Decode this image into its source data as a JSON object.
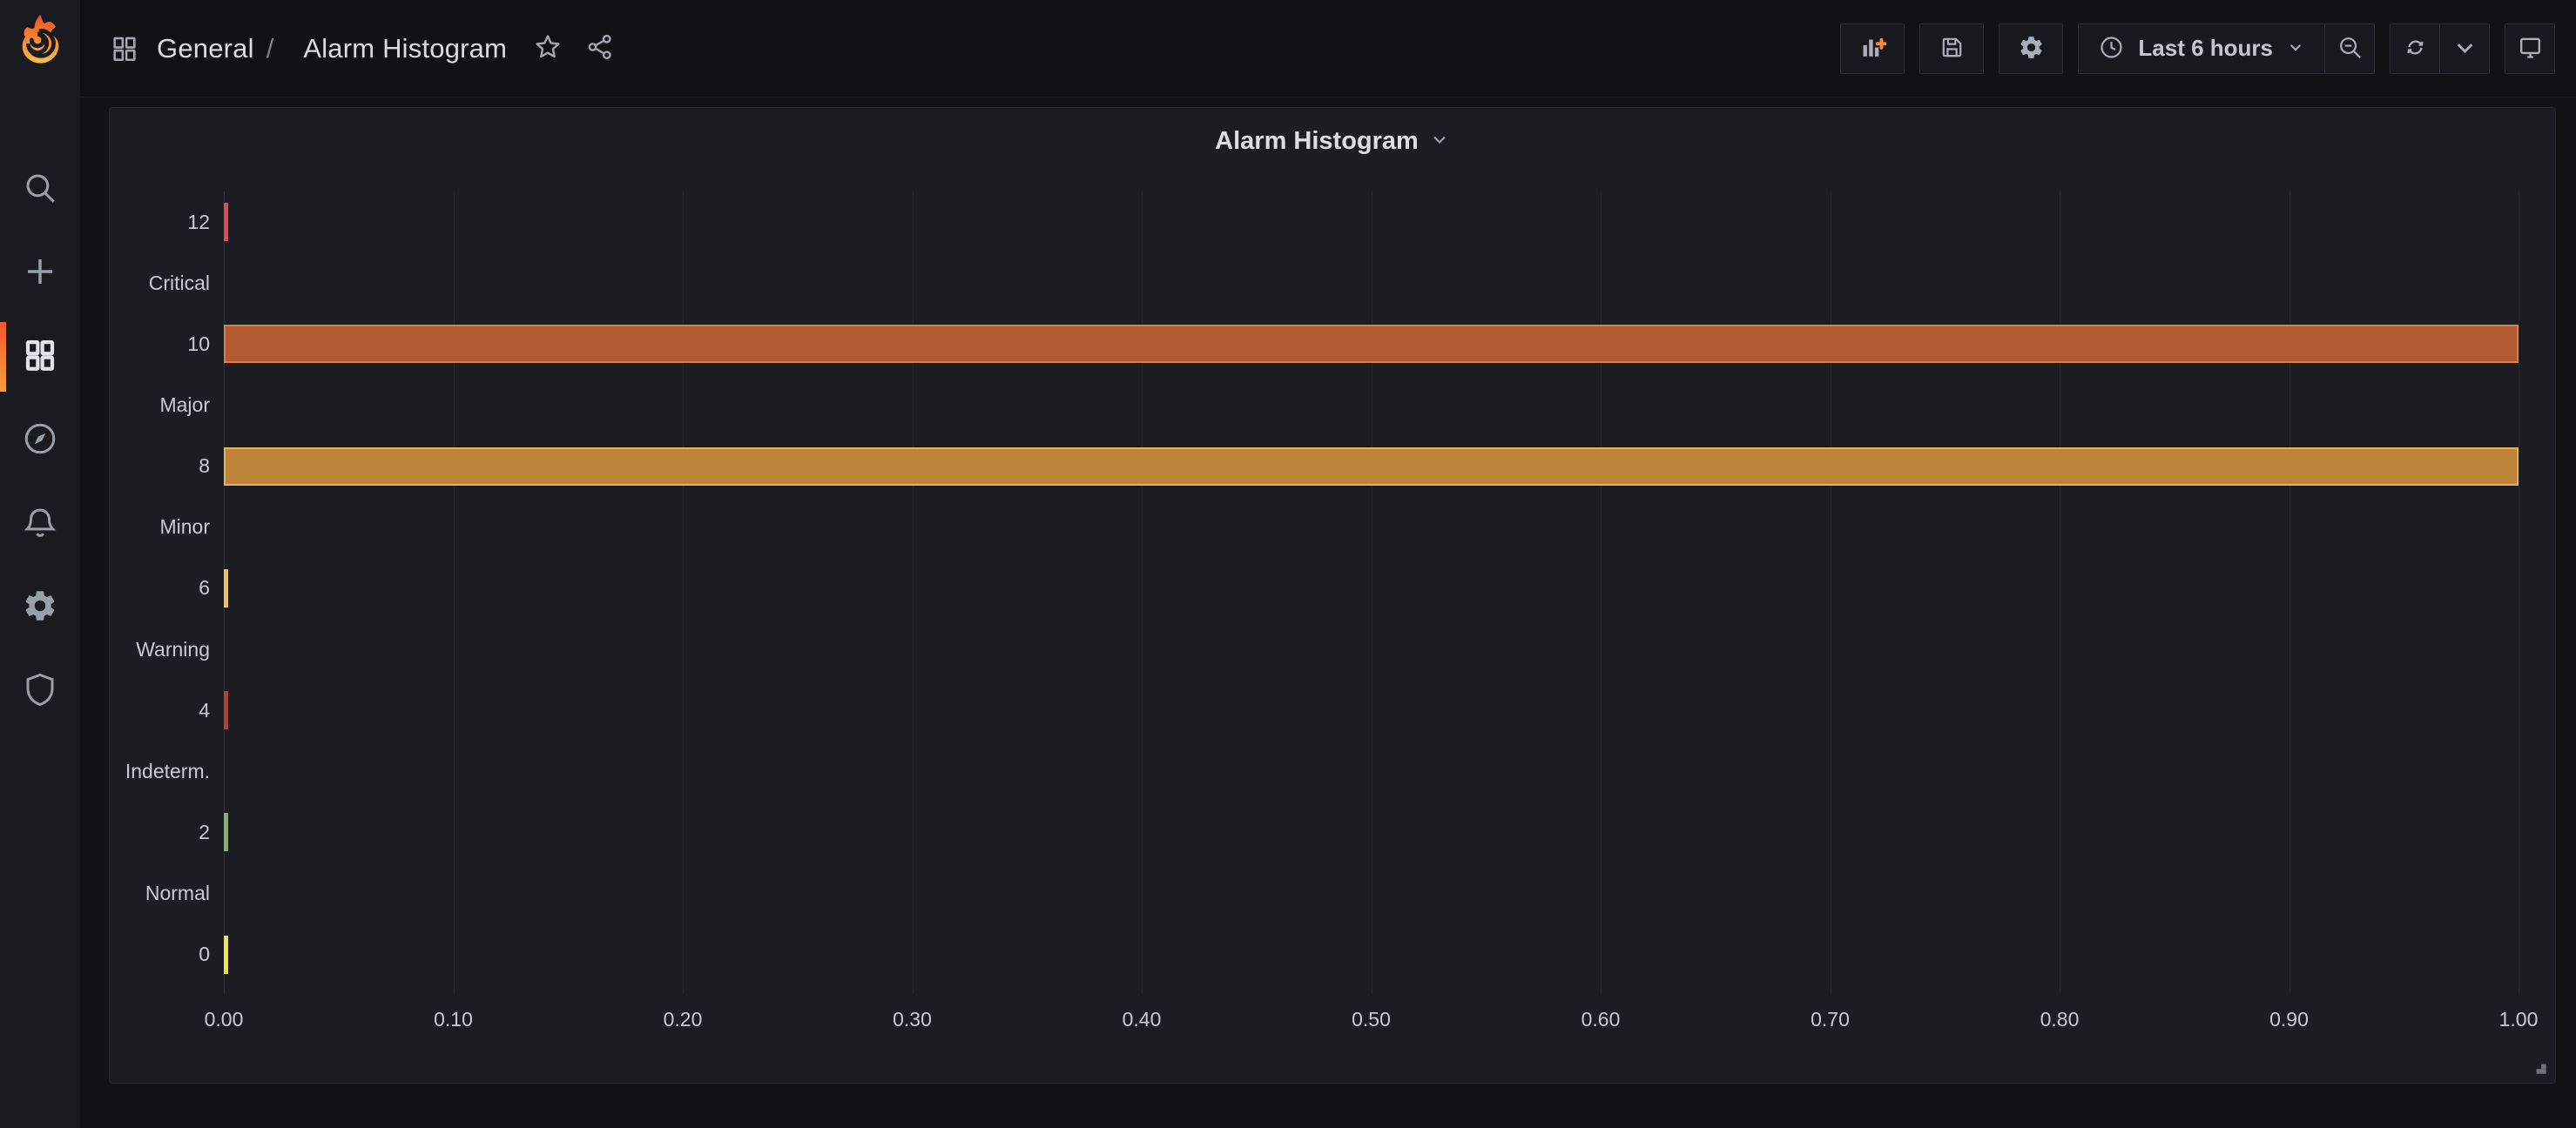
{
  "breadcrumb": {
    "section": "General",
    "separator": "/",
    "page": "Alarm Histogram"
  },
  "sidebar": {
    "items": [
      {
        "name": "search",
        "icon": "search-icon"
      },
      {
        "name": "create",
        "icon": "plus-icon"
      },
      {
        "name": "dashboards",
        "icon": "dashboards-grid-icon",
        "active": true
      },
      {
        "name": "explore",
        "icon": "compass-icon"
      },
      {
        "name": "alerting",
        "icon": "bell-icon"
      },
      {
        "name": "configuration",
        "icon": "gear-icon"
      },
      {
        "name": "server-admin",
        "icon": "shield-icon"
      }
    ]
  },
  "toolbar": {
    "time_range_label": "Last 6 hours",
    "buttons": [
      "add-panel-icon",
      "save-icon",
      "gear-icon",
      "clock-icon",
      "chevron-down-icon",
      "zoom-out-icon",
      "refresh-icon",
      "chevron-down-icon",
      "monitor-icon"
    ]
  },
  "panel": {
    "title": "Alarm Histogram"
  },
  "colors": {
    "accent_orange": "#ff8833",
    "panel_bg": "#1b1d22",
    "page_bg": "#101216",
    "sidebar_bg": "#1a1b20"
  },
  "chart_data": {
    "type": "bar",
    "orientation": "horizontal",
    "title": "Alarm Histogram",
    "xlabel": "",
    "ylabel": "",
    "xlim": [
      0,
      1
    ],
    "grid": true,
    "legend": "none",
    "x_ticks": [
      "0.00",
      "0.10",
      "0.20",
      "0.30",
      "0.40",
      "0.50",
      "0.60",
      "0.70",
      "0.80",
      "0.90",
      "1.00"
    ],
    "rows": [
      {
        "label": "12",
        "value": 0.002,
        "fill": "#e04a50",
        "border": "#e04a50"
      },
      {
        "label": "Critical",
        "value": null,
        "fill": null,
        "border": null
      },
      {
        "label": "10",
        "value": 1.0,
        "fill": "#b25a34",
        "border": "#dd7d41"
      },
      {
        "label": "Major",
        "value": null,
        "fill": null,
        "border": null
      },
      {
        "label": "8",
        "value": 1.0,
        "fill": "#bd8338",
        "border": "#eab24f"
      },
      {
        "label": "Minor",
        "value": null,
        "fill": null,
        "border": null
      },
      {
        "label": "6",
        "value": 0.002,
        "fill": "#eec254",
        "border": "#eec254"
      },
      {
        "label": "Warning",
        "value": null,
        "fill": null,
        "border": null
      },
      {
        "label": "4",
        "value": 0.002,
        "fill": "#bb3a31",
        "border": "#bb3a31"
      },
      {
        "label": "Indeterm.",
        "value": null,
        "fill": null,
        "border": null
      },
      {
        "label": "2",
        "value": 0.002,
        "fill": "#8ab06c",
        "border": "#8ab06c"
      },
      {
        "label": "Normal",
        "value": null,
        "fill": null,
        "border": null
      },
      {
        "label": "0",
        "value": 0.002,
        "fill": "#f6e33e",
        "border": "#f6e33e"
      }
    ]
  }
}
